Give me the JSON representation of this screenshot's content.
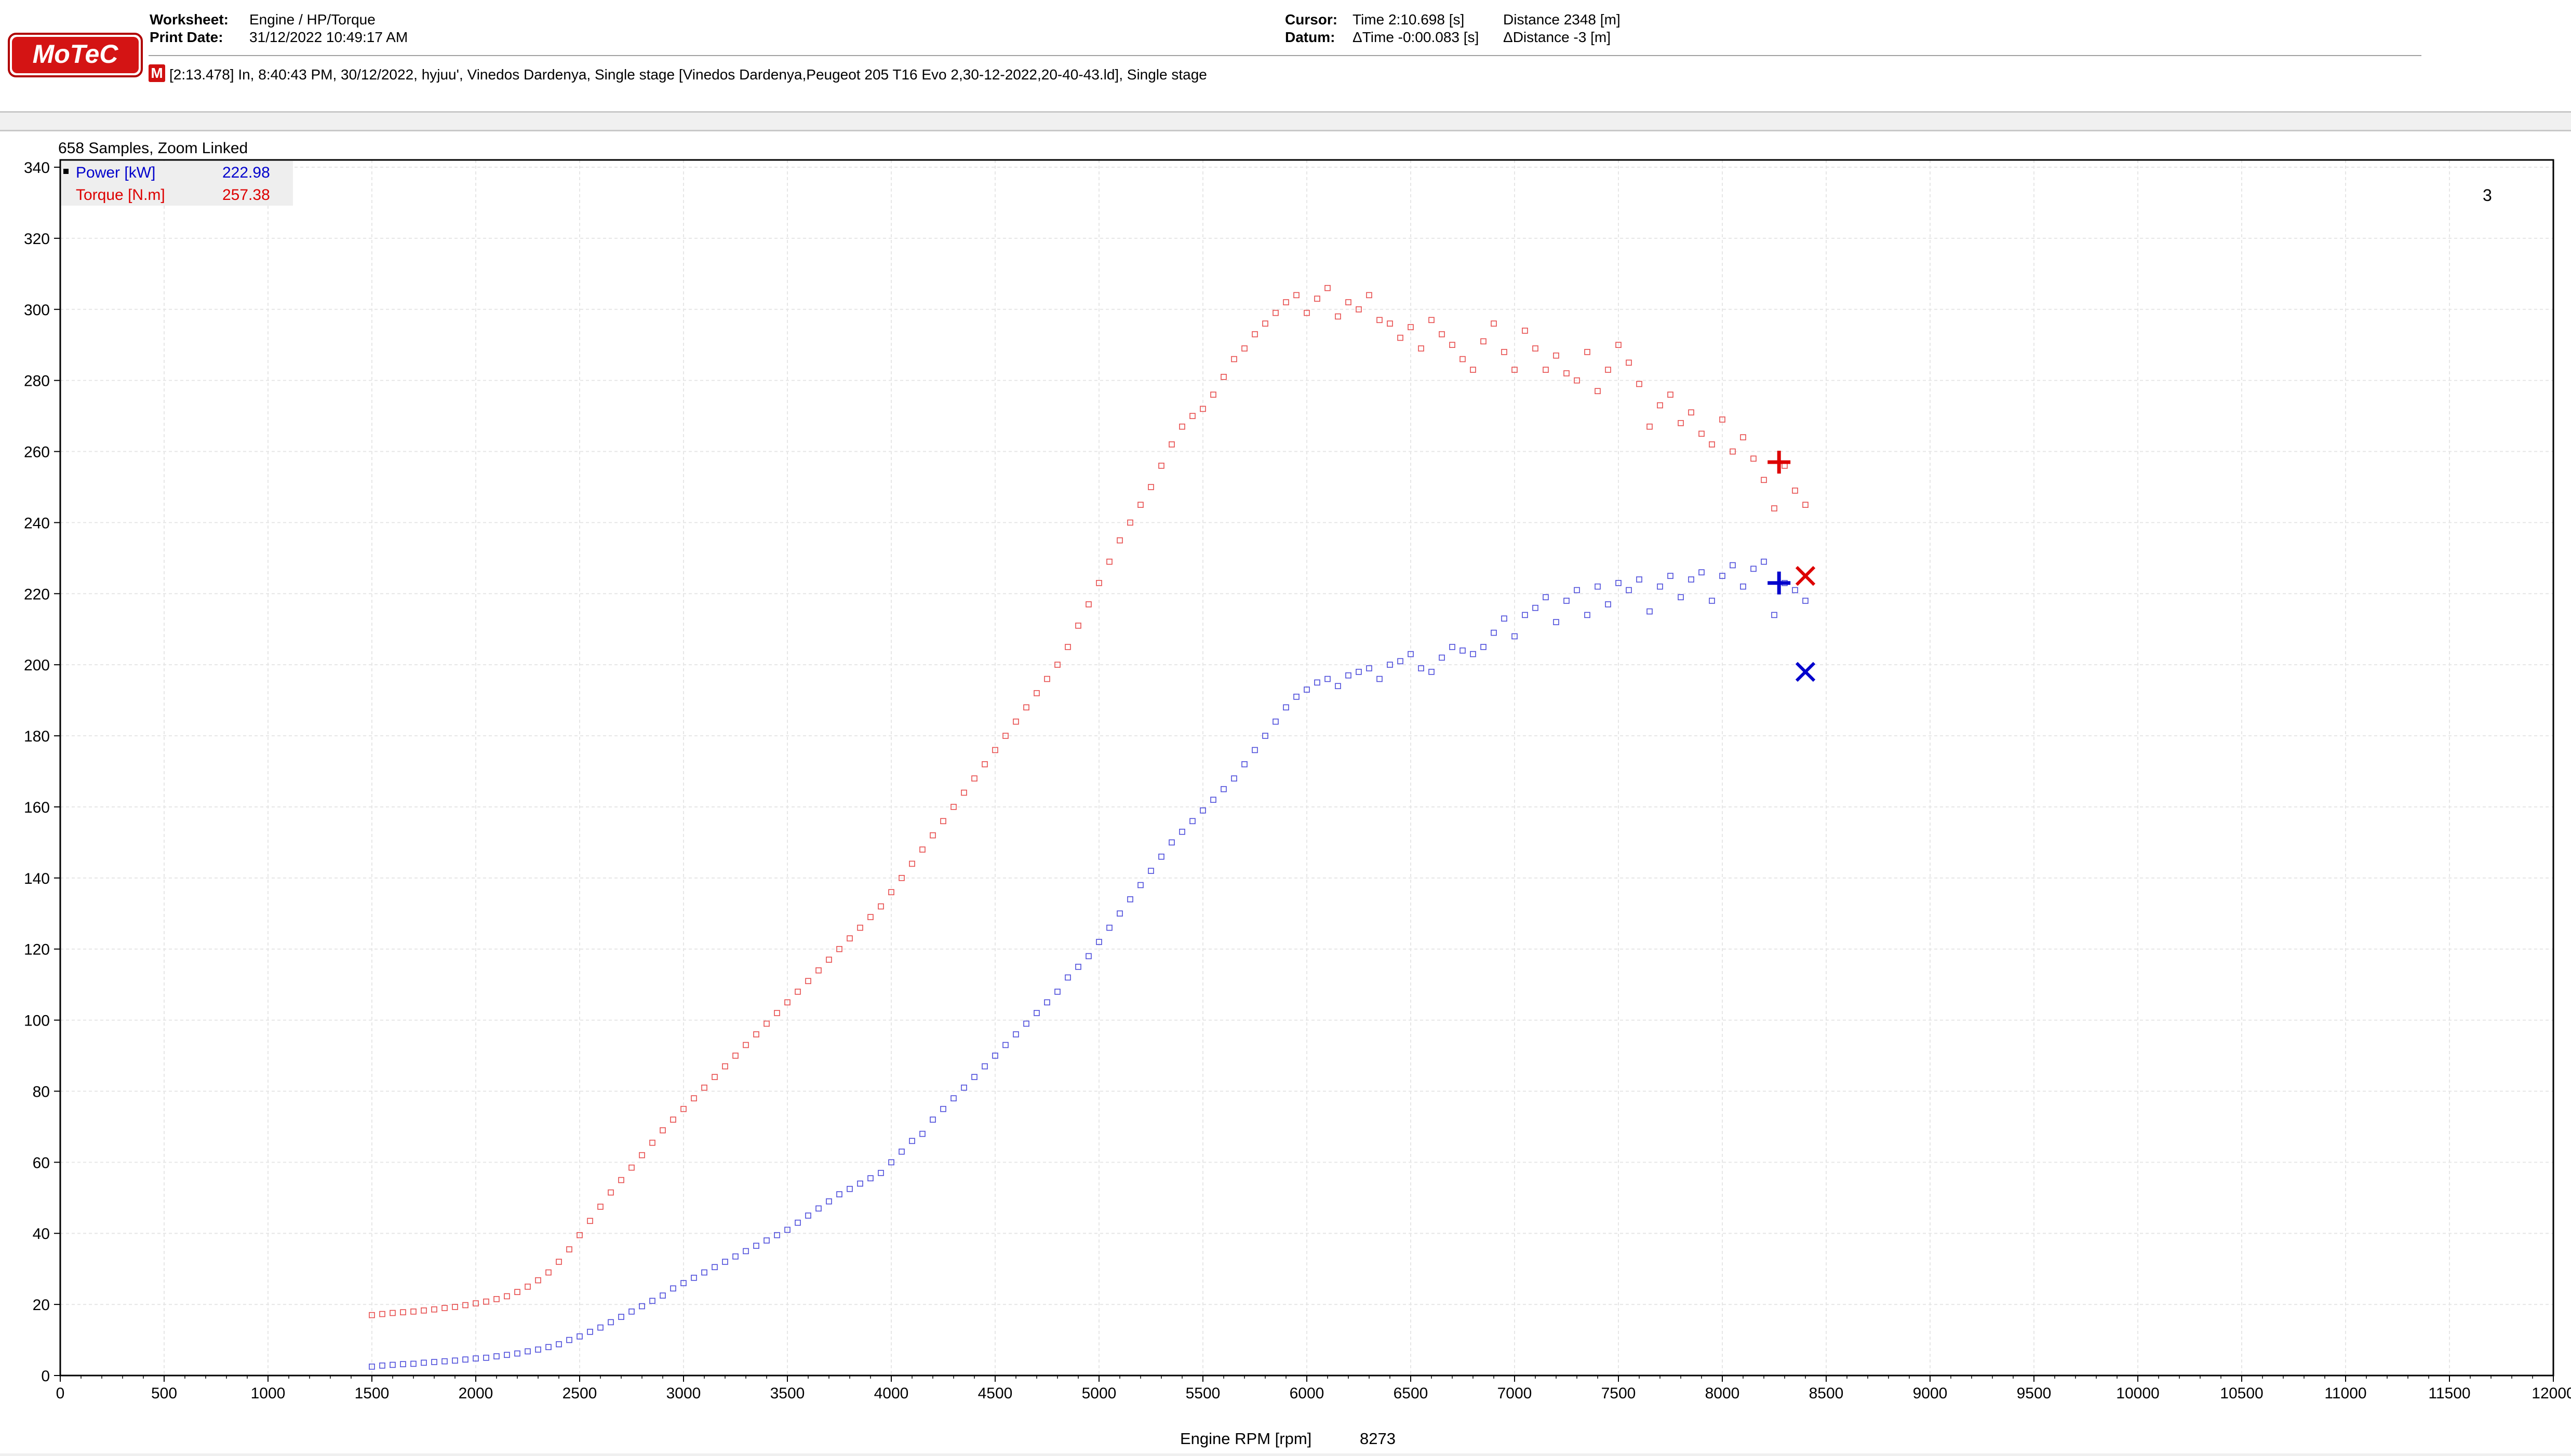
{
  "header": {
    "worksheet_label": "Worksheet:",
    "worksheet_value": "Engine / HP/Torque",
    "print_date_label": "Print Date:",
    "print_date_value": "31/12/2022 10:49:17 AM",
    "cursor_label": "Cursor:",
    "cursor_time": "Time  2:10.698 [s]",
    "cursor_distance": "Distance  2348 [m]",
    "datum_label": "Datum:",
    "datum_time": "ΔTime  -0:00.083 [s]",
    "datum_distance": "ΔDistance  -3 [m]",
    "logo_text": "MoTeC",
    "session_icon": "M",
    "session_info": "[2:13.478] In, 8:40:43 PM, 30/12/2022, hyjuu', Vinedos Dardenya, Single stage [Vinedos Dardenya,Peugeot 205 T16 Evo 2,30-12-2022,20-40-43.ld], Single stage"
  },
  "chart_data": {
    "type": "scatter",
    "samples_text": "658 Samples, Zoom Linked",
    "xlabel": "Engine RPM [rpm]",
    "cursor_x_text": "8273",
    "corner_label": "3",
    "xlim": [
      0,
      12000
    ],
    "ylim": [
      0,
      340
    ],
    "x_ticks": [
      0,
      500,
      1000,
      1500,
      2000,
      2500,
      3000,
      3500,
      4000,
      4500,
      5000,
      5500,
      6000,
      6500,
      7000,
      7500,
      8000,
      8500,
      9000,
      9500,
      10000,
      10500,
      11000,
      11500,
      12000
    ],
    "y_ticks": [
      0,
      20,
      40,
      60,
      80,
      100,
      120,
      140,
      160,
      180,
      200,
      220,
      240,
      260,
      280,
      300,
      320,
      340
    ],
    "x_tick_labels": [
      "0",
      "500",
      "1000",
      "1500",
      "2000",
      "2500",
      "3000",
      "3500",
      "4000",
      "4500",
      "5000",
      "5500",
      "6000",
      "6500",
      "7000",
      "7500",
      "8000",
      "8500",
      "9000",
      "9500",
      "10000",
      "10500",
      "11000",
      "11500",
      "12000"
    ],
    "y_tick_labels": [
      "0",
      "20",
      "40",
      "60",
      "80",
      "100",
      "120",
      "140",
      "160",
      "180",
      "200",
      "220",
      "240",
      "260",
      "280",
      "300",
      "320",
      "340"
    ],
    "grid": true,
    "legend_position": "top-left",
    "series": [
      {
        "name": "Power [kW]",
        "cursor_value": "222.98",
        "color": "#0000cc",
        "cursor_marker": [
          8273,
          223
        ],
        "x_marker": [
          8400,
          198
        ],
        "points": [
          [
            1500,
            2.5
          ],
          [
            1550,
            2.8
          ],
          [
            1600,
            3
          ],
          [
            1650,
            3.2
          ],
          [
            1700,
            3.3
          ],
          [
            1750,
            3.6
          ],
          [
            1800,
            3.8
          ],
          [
            1850,
            4
          ],
          [
            1900,
            4.2
          ],
          [
            1950,
            4.5
          ],
          [
            2000,
            4.8
          ],
          [
            2050,
            5
          ],
          [
            2100,
            5.4
          ],
          [
            2150,
            5.8
          ],
          [
            2200,
            6.2
          ],
          [
            2250,
            6.8
          ],
          [
            2300,
            7.3
          ],
          [
            2350,
            8
          ],
          [
            2400,
            8.8
          ],
          [
            2450,
            10
          ],
          [
            2500,
            11
          ],
          [
            2550,
            12.3
          ],
          [
            2600,
            13.5
          ],
          [
            2650,
            15
          ],
          [
            2700,
            16.5
          ],
          [
            2750,
            18
          ],
          [
            2800,
            19.5
          ],
          [
            2850,
            21
          ],
          [
            2900,
            22.5
          ],
          [
            2950,
            24.5
          ],
          [
            3000,
            26
          ],
          [
            3050,
            27.5
          ],
          [
            3100,
            29
          ],
          [
            3150,
            30.5
          ],
          [
            3200,
            32
          ],
          [
            3250,
            33.5
          ],
          [
            3300,
            35
          ],
          [
            3350,
            36.5
          ],
          [
            3400,
            38
          ],
          [
            3450,
            39.5
          ],
          [
            3500,
            41
          ],
          [
            3550,
            43
          ],
          [
            3600,
            45
          ],
          [
            3650,
            47
          ],
          [
            3700,
            49
          ],
          [
            3750,
            51
          ],
          [
            3800,
            52.5
          ],
          [
            3850,
            54
          ],
          [
            3900,
            55.5
          ],
          [
            3950,
            57
          ],
          [
            4000,
            60
          ],
          [
            4050,
            63
          ],
          [
            4100,
            66
          ],
          [
            4150,
            68
          ],
          [
            4200,
            72
          ],
          [
            4250,
            75
          ],
          [
            4300,
            78
          ],
          [
            4350,
            81
          ],
          [
            4400,
            84
          ],
          [
            4450,
            87
          ],
          [
            4500,
            90
          ],
          [
            4550,
            93
          ],
          [
            4600,
            96
          ],
          [
            4650,
            99
          ],
          [
            4700,
            102
          ],
          [
            4750,
            105
          ],
          [
            4800,
            108
          ],
          [
            4850,
            112
          ],
          [
            4900,
            115
          ],
          [
            4950,
            118
          ],
          [
            5000,
            122
          ],
          [
            5050,
            126
          ],
          [
            5100,
            130
          ],
          [
            5150,
            134
          ],
          [
            5200,
            138
          ],
          [
            5250,
            142
          ],
          [
            5300,
            146
          ],
          [
            5350,
            150
          ],
          [
            5400,
            153
          ],
          [
            5450,
            156
          ],
          [
            5500,
            159
          ],
          [
            5550,
            162
          ],
          [
            5600,
            165
          ],
          [
            5650,
            168
          ],
          [
            5700,
            172
          ],
          [
            5750,
            176
          ],
          [
            5800,
            180
          ],
          [
            5850,
            184
          ],
          [
            5900,
            188
          ],
          [
            5950,
            191
          ],
          [
            6000,
            193
          ],
          [
            6050,
            195
          ],
          [
            6100,
            196
          ],
          [
            6150,
            194
          ],
          [
            6200,
            197
          ],
          [
            6250,
            198
          ],
          [
            6300,
            199
          ],
          [
            6350,
            196
          ],
          [
            6400,
            200
          ],
          [
            6450,
            201
          ],
          [
            6500,
            203
          ],
          [
            6550,
            199
          ],
          [
            6600,
            198
          ],
          [
            6650,
            202
          ],
          [
            6700,
            205
          ],
          [
            6750,
            204
          ],
          [
            6800,
            203
          ],
          [
            6850,
            205
          ],
          [
            6900,
            209
          ],
          [
            6950,
            213
          ],
          [
            7000,
            208
          ],
          [
            7050,
            214
          ],
          [
            7100,
            216
          ],
          [
            7150,
            219
          ],
          [
            7200,
            212
          ],
          [
            7250,
            218
          ],
          [
            7300,
            221
          ],
          [
            7350,
            214
          ],
          [
            7400,
            222
          ],
          [
            7450,
            217
          ],
          [
            7500,
            223
          ],
          [
            7550,
            221
          ],
          [
            7600,
            224
          ],
          [
            7650,
            215
          ],
          [
            7700,
            222
          ],
          [
            7750,
            225
          ],
          [
            7800,
            219
          ],
          [
            7850,
            224
          ],
          [
            7900,
            226
          ],
          [
            7950,
            218
          ],
          [
            8000,
            225
          ],
          [
            8050,
            228
          ],
          [
            8100,
            222
          ],
          [
            8150,
            227
          ],
          [
            8200,
            229
          ],
          [
            8250,
            214
          ],
          [
            8300,
            223
          ],
          [
            8350,
            221
          ],
          [
            8400,
            218
          ]
        ]
      },
      {
        "name": "Torque [N.m]",
        "cursor_value": "257.38",
        "color": "#dd0000",
        "cursor_marker": [
          8273,
          257
        ],
        "x_marker": [
          8400,
          225
        ],
        "points": [
          [
            1500,
            17
          ],
          [
            1550,
            17.3
          ],
          [
            1600,
            17.6
          ],
          [
            1650,
            17.8
          ],
          [
            1700,
            18
          ],
          [
            1750,
            18.3
          ],
          [
            1800,
            18.6
          ],
          [
            1850,
            19
          ],
          [
            1900,
            19.3
          ],
          [
            1950,
            19.8
          ],
          [
            2000,
            20.3
          ],
          [
            2050,
            20.8
          ],
          [
            2100,
            21.5
          ],
          [
            2150,
            22.3
          ],
          [
            2200,
            23.5
          ],
          [
            2250,
            25
          ],
          [
            2300,
            26.8
          ],
          [
            2350,
            29
          ],
          [
            2400,
            32
          ],
          [
            2450,
            35.5
          ],
          [
            2500,
            39.5
          ],
          [
            2550,
            43.5
          ],
          [
            2600,
            47.5
          ],
          [
            2650,
            51.5
          ],
          [
            2700,
            55
          ],
          [
            2750,
            58.5
          ],
          [
            2800,
            62
          ],
          [
            2850,
            65.5
          ],
          [
            2900,
            69
          ],
          [
            2950,
            72
          ],
          [
            3000,
            75
          ],
          [
            3050,
            78
          ],
          [
            3100,
            81
          ],
          [
            3150,
            84
          ],
          [
            3200,
            87
          ],
          [
            3250,
            90
          ],
          [
            3300,
            93
          ],
          [
            3350,
            96
          ],
          [
            3400,
            99
          ],
          [
            3450,
            102
          ],
          [
            3500,
            105
          ],
          [
            3550,
            108
          ],
          [
            3600,
            111
          ],
          [
            3650,
            114
          ],
          [
            3700,
            117
          ],
          [
            3750,
            120
          ],
          [
            3800,
            123
          ],
          [
            3850,
            126
          ],
          [
            3900,
            129
          ],
          [
            3950,
            132
          ],
          [
            4000,
            136
          ],
          [
            4050,
            140
          ],
          [
            4100,
            144
          ],
          [
            4150,
            148
          ],
          [
            4200,
            152
          ],
          [
            4250,
            156
          ],
          [
            4300,
            160
          ],
          [
            4350,
            164
          ],
          [
            4400,
            168
          ],
          [
            4450,
            172
          ],
          [
            4500,
            176
          ],
          [
            4550,
            180
          ],
          [
            4600,
            184
          ],
          [
            4650,
            188
          ],
          [
            4700,
            192
          ],
          [
            4750,
            196
          ],
          [
            4800,
            200
          ],
          [
            4850,
            205
          ],
          [
            4900,
            211
          ],
          [
            4950,
            217
          ],
          [
            5000,
            223
          ],
          [
            5050,
            229
          ],
          [
            5100,
            235
          ],
          [
            5150,
            240
          ],
          [
            5200,
            245
          ],
          [
            5250,
            250
          ],
          [
            5300,
            256
          ],
          [
            5350,
            262
          ],
          [
            5400,
            267
          ],
          [
            5450,
            270
          ],
          [
            5500,
            272
          ],
          [
            5550,
            276
          ],
          [
            5600,
            281
          ],
          [
            5650,
            286
          ],
          [
            5700,
            289
          ],
          [
            5750,
            293
          ],
          [
            5800,
            296
          ],
          [
            5850,
            299
          ],
          [
            5900,
            302
          ],
          [
            5950,
            304
          ],
          [
            6000,
            299
          ],
          [
            6050,
            303
          ],
          [
            6100,
            306
          ],
          [
            6150,
            298
          ],
          [
            6200,
            302
          ],
          [
            6250,
            300
          ],
          [
            6300,
            304
          ],
          [
            6350,
            297
          ],
          [
            6400,
            296
          ],
          [
            6450,
            292
          ],
          [
            6500,
            295
          ],
          [
            6550,
            289
          ],
          [
            6600,
            297
          ],
          [
            6650,
            293
          ],
          [
            6700,
            290
          ],
          [
            6750,
            286
          ],
          [
            6800,
            283
          ],
          [
            6850,
            291
          ],
          [
            6900,
            296
          ],
          [
            6950,
            288
          ],
          [
            7000,
            283
          ],
          [
            7050,
            294
          ],
          [
            7100,
            289
          ],
          [
            7150,
            283
          ],
          [
            7200,
            287
          ],
          [
            7250,
            282
          ],
          [
            7300,
            280
          ],
          [
            7350,
            288
          ],
          [
            7400,
            277
          ],
          [
            7450,
            283
          ],
          [
            7500,
            290
          ],
          [
            7550,
            285
          ],
          [
            7600,
            279
          ],
          [
            7650,
            267
          ],
          [
            7700,
            273
          ],
          [
            7750,
            276
          ],
          [
            7800,
            268
          ],
          [
            7850,
            271
          ],
          [
            7900,
            265
          ],
          [
            7950,
            262
          ],
          [
            8000,
            269
          ],
          [
            8050,
            260
          ],
          [
            8100,
            264
          ],
          [
            8150,
            258
          ],
          [
            8200,
            252
          ],
          [
            8250,
            244
          ],
          [
            8300,
            256
          ],
          [
            8350,
            249
          ],
          [
            8400,
            245
          ]
        ]
      }
    ]
  }
}
